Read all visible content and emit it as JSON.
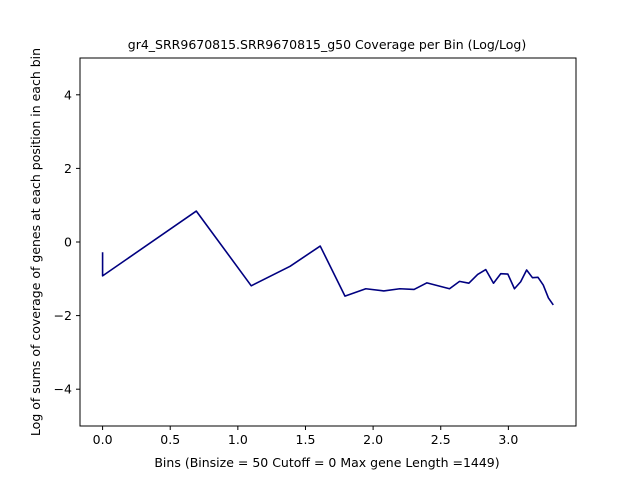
{
  "chart_data": {
    "type": "line",
    "title": "gr4_SRR9670815.SRR9670815_g50 Coverage per Bin (Log/Log)",
    "xlabel": "Bins  (Binsize = 50 Cutoff = 0 Max gene Length =1449)",
    "ylabel": "Log of sums of coverage of genes at each position in each bin",
    "xlim": [
      -0.167,
      3.5
    ],
    "ylim": [
      -5,
      5
    ],
    "xticks": [
      0.0,
      0.5,
      1.0,
      1.5,
      2.0,
      2.5,
      3.0
    ],
    "xtick_labels": [
      "0.0",
      "0.5",
      "1.0",
      "1.5",
      "2.0",
      "2.5",
      "3.0"
    ],
    "yticks": [
      -4,
      -2,
      0,
      2,
      4
    ],
    "ytick_labels": [
      "−4",
      "−2",
      "0",
      "2",
      "4"
    ],
    "grid": false,
    "series": [
      {
        "color": "#000080",
        "x": [
          0.0,
          0.0,
          0.693,
          1.099,
          1.386,
          1.609,
          1.792,
          1.946,
          2.079,
          2.197,
          2.303,
          2.398,
          2.565,
          2.639,
          2.708,
          2.773,
          2.833,
          2.89,
          2.944,
          2.996,
          3.045,
          3.091,
          3.135,
          3.178,
          3.219,
          3.258,
          3.296,
          3.332
        ],
        "y": [
          -0.28,
          -0.92,
          0.84,
          -1.19,
          -0.66,
          -0.11,
          -1.47,
          -1.27,
          -1.33,
          -1.27,
          -1.29,
          -1.11,
          -1.27,
          -1.07,
          -1.12,
          -0.88,
          -0.75,
          -1.12,
          -0.86,
          -0.87,
          -1.27,
          -1.08,
          -0.76,
          -0.97,
          -0.96,
          -1.17,
          -1.52,
          -1.71
        ]
      }
    ]
  }
}
